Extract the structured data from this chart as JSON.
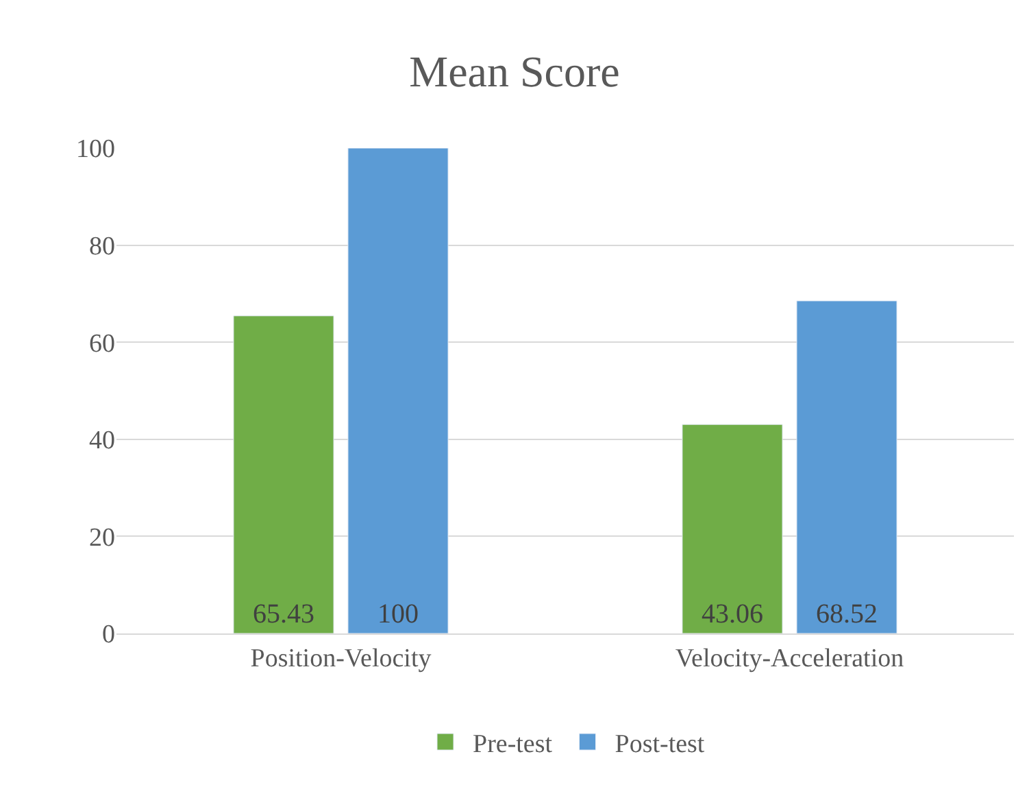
{
  "chart_data": {
    "type": "bar",
    "title": "Mean Score",
    "categories": [
      "Position-Velocity",
      "Velocity-Acceleration"
    ],
    "series": [
      {
        "name": "Pre-test",
        "color": "#70ad47",
        "values": [
          65.43,
          43.06
        ]
      },
      {
        "name": "Post-test",
        "color": "#5b9bd5",
        "values": [
          100,
          68.52
        ]
      }
    ],
    "ylim": [
      0,
      100
    ],
    "yticks": [
      0,
      20,
      40,
      60,
      80,
      100
    ],
    "grid": "y",
    "legend": "bottom",
    "data_labels": true
  }
}
